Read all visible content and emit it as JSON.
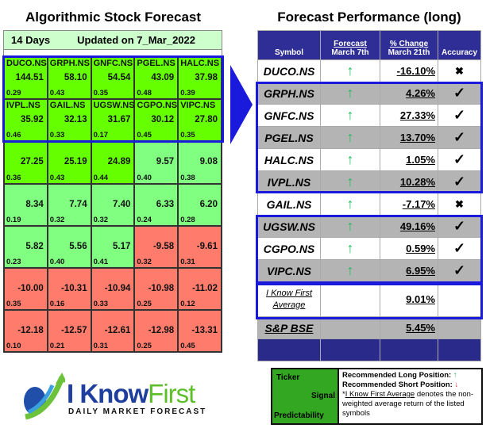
{
  "left": {
    "title": "Algorithmic Stock Forecast",
    "period": "14 Days",
    "updated": "Updated on 7_Mar_2022",
    "cells": [
      {
        "ticker": "DUCO.NS",
        "signal": "144.51",
        "pred": "0.29",
        "c": 1
      },
      {
        "ticker": "GRPH.NS",
        "signal": "58.10",
        "pred": "0.43",
        "c": 1
      },
      {
        "ticker": "GNFC.NS",
        "signal": "54.54",
        "pred": "0.35",
        "c": 1
      },
      {
        "ticker": "PGEL.NS",
        "signal": "43.09",
        "pred": "0.48",
        "c": 1
      },
      {
        "ticker": "HALC.NS",
        "signal": "37.98",
        "pred": "0.39",
        "c": 1
      },
      {
        "ticker": "IVPL.NS",
        "signal": "35.92",
        "pred": "0.46",
        "c": 1
      },
      {
        "ticker": "GAIL.NS",
        "signal": "32.13",
        "pred": "0.33",
        "c": 1
      },
      {
        "ticker": "UGSW.NS",
        "signal": "31.67",
        "pred": "0.17",
        "c": 1
      },
      {
        "ticker": "CGPO.NS",
        "signal": "30.12",
        "pred": "0.45",
        "c": 1
      },
      {
        "ticker": "VIPC.NS",
        "signal": "27.80",
        "pred": "0.35",
        "c": 1
      },
      {
        "ticker": "",
        "signal": "27.25",
        "pred": "0.36",
        "c": 1
      },
      {
        "ticker": "",
        "signal": "25.19",
        "pred": "0.43",
        "c": 1
      },
      {
        "ticker": "",
        "signal": "24.89",
        "pred": "0.44",
        "c": 1
      },
      {
        "ticker": "",
        "signal": "9.57",
        "pred": "0.40",
        "c": 2
      },
      {
        "ticker": "",
        "signal": "9.08",
        "pred": "0.38",
        "c": 2
      },
      {
        "ticker": "",
        "signal": "8.34",
        "pred": "0.19",
        "c": 2
      },
      {
        "ticker": "",
        "signal": "7.74",
        "pred": "0.32",
        "c": 2
      },
      {
        "ticker": "",
        "signal": "7.40",
        "pred": "0.32",
        "c": 2
      },
      {
        "ticker": "",
        "signal": "6.33",
        "pred": "0.24",
        "c": 2
      },
      {
        "ticker": "",
        "signal": "6.20",
        "pred": "0.28",
        "c": 2
      },
      {
        "ticker": "",
        "signal": "5.82",
        "pred": "0.23",
        "c": 2
      },
      {
        "ticker": "",
        "signal": "5.56",
        "pred": "0.40",
        "c": 2
      },
      {
        "ticker": "",
        "signal": "5.17",
        "pred": "0.41",
        "c": 2
      },
      {
        "ticker": "",
        "signal": "-9.58",
        "pred": "0.32",
        "c": 3
      },
      {
        "ticker": "",
        "signal": "-9.61",
        "pred": "0.31",
        "c": 3
      },
      {
        "ticker": "",
        "signal": "-10.00",
        "pred": "0.35",
        "c": 3
      },
      {
        "ticker": "",
        "signal": "-10.31",
        "pred": "0.16",
        "c": 3
      },
      {
        "ticker": "",
        "signal": "-10.94",
        "pred": "0.33",
        "c": 3
      },
      {
        "ticker": "",
        "signal": "-10.98",
        "pred": "0.25",
        "c": 3
      },
      {
        "ticker": "",
        "signal": "-11.02",
        "pred": "0.12",
        "c": 3
      },
      {
        "ticker": "",
        "signal": "-12.18",
        "pred": "0.10",
        "c": 3
      },
      {
        "ticker": "",
        "signal": "-12.57",
        "pred": "0.21",
        "c": 3
      },
      {
        "ticker": "",
        "signal": "-12.61",
        "pred": "0.31",
        "c": 3
      },
      {
        "ticker": "",
        "signal": "-12.98",
        "pred": "0.25",
        "c": 3
      },
      {
        "ticker": "",
        "signal": "-13.31",
        "pred": "0.45",
        "c": 3
      }
    ]
  },
  "right": {
    "title": "Forecast Performance (long)",
    "headers": {
      "symbol": "Symbol",
      "forecast": "Forecast",
      "forecast_date": "March 7th",
      "change": "% Change",
      "change_date": "March 21th",
      "accuracy": "Accuracy"
    },
    "rows": [
      {
        "symbol": "DUCO.NS",
        "forecast": "↑",
        "change": "-16.10%",
        "accuracy": "✖"
      },
      {
        "symbol": "GRPH.NS",
        "forecast": "↑",
        "change": "4.26%",
        "accuracy": "✓"
      },
      {
        "symbol": "GNFC.NS",
        "forecast": "↑",
        "change": "27.33%",
        "accuracy": "✓"
      },
      {
        "symbol": "PGEL.NS",
        "forecast": "↑",
        "change": "13.70%",
        "accuracy": "✓"
      },
      {
        "symbol": "HALC.NS",
        "forecast": "↑",
        "change": "1.05%",
        "accuracy": "✓"
      },
      {
        "symbol": "IVPL.NS",
        "forecast": "↑",
        "change": "10.28%",
        "accuracy": "✓"
      },
      {
        "symbol": "GAIL.NS",
        "forecast": "↑",
        "change": "-7.17%",
        "accuracy": "✖"
      },
      {
        "symbol": "UGSW.NS",
        "forecast": "↑",
        "change": "49.16%",
        "accuracy": "✓"
      },
      {
        "symbol": "CGPO.NS",
        "forecast": "↑",
        "change": "0.59%",
        "accuracy": "✓"
      },
      {
        "symbol": "VIPC.NS",
        "forecast": "↑",
        "change": "6.95%",
        "accuracy": "✓"
      }
    ],
    "average": {
      "label1": "I Know First",
      "label2": "Average",
      "change": "9.01%"
    },
    "benchmark": {
      "label": "S&P BSE",
      "change": "5.45%"
    }
  },
  "legend": {
    "ticker": "Ticker",
    "signal": "Signal",
    "predictability": "Predictability",
    "long": "Recommended Long Position:",
    "short": "Recommended Short Position:",
    "note_link": "I Know First Average",
    "note_prefix": "*",
    "note_rest": " denotes the non-weighted average return of the listed symbols"
  },
  "logo": {
    "name1": "I Know",
    "name2": "First",
    "tagline": "Daily Market Forecast"
  },
  "colors": {
    "strong_green": "#66ff00",
    "light_green": "#80ff80",
    "red": "#ff7c6c",
    "header_blue": "#2e2e96",
    "highlight_blue": "#1a1adc"
  }
}
